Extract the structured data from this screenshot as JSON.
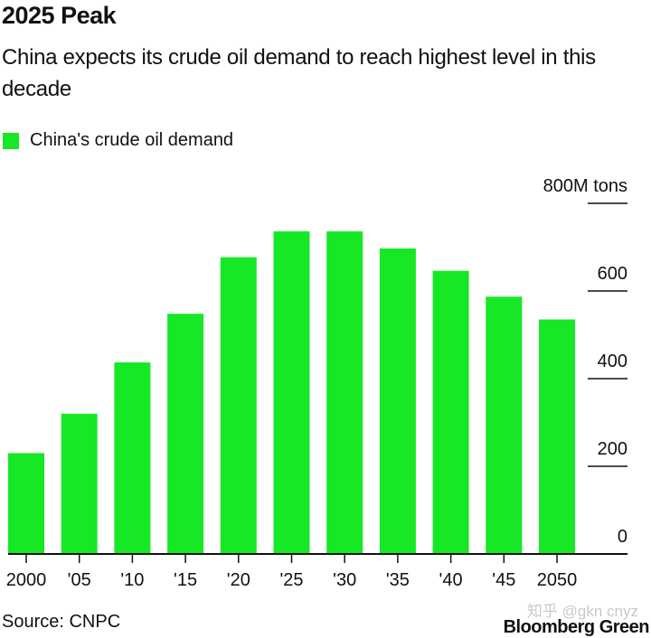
{
  "header": {
    "title": "2025 Peak",
    "subtitle": "China expects its crude oil demand to reach highest level in this decade"
  },
  "legend": {
    "label": "China's crude oil demand",
    "color": "#16e825"
  },
  "footer": {
    "source": "Source: CNPC",
    "brand": "Bloomberg Green",
    "watermark": "知乎 @gkn cnyz"
  },
  "chart_data": {
    "type": "bar",
    "title": "2025 Peak",
    "subtitle": "China expects its crude oil demand to reach highest level in this decade",
    "categories": [
      "2000",
      "'05",
      "'10",
      "'15",
      "'20",
      "'25",
      "'30",
      "'35",
      "'40",
      "'45",
      "2050"
    ],
    "series": [
      {
        "name": "China's crude oil demand",
        "color": "#16e825",
        "values": [
          230,
          320,
          437,
          548,
          677,
          736,
          736,
          697,
          646,
          587,
          535
        ]
      }
    ],
    "xlabel": "",
    "ylabel": "M tons",
    "ylim": [
      0,
      800
    ],
    "yticks": [
      0,
      200,
      400,
      600,
      800
    ],
    "ytick_labels": [
      "0",
      "200",
      "400",
      "600",
      "800M tons"
    ],
    "y_axis_position": "right",
    "grid": false,
    "legend_position": "top-left"
  }
}
